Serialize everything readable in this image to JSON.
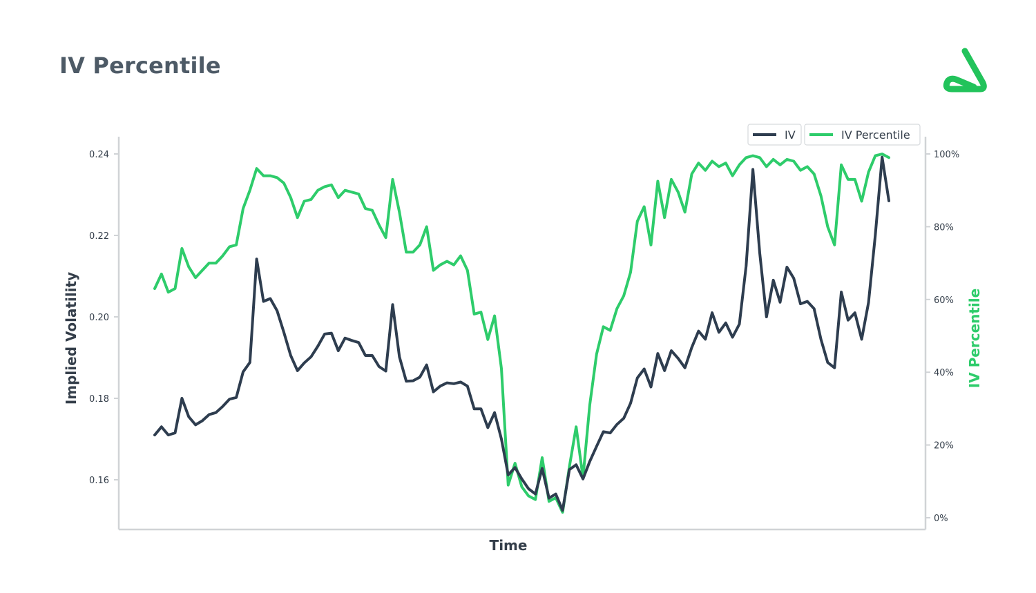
{
  "header": {
    "title": "IV Percentile"
  },
  "logo": {
    "icon": "brand-logo-icon",
    "color": "#22c35b"
  },
  "colors": {
    "iv": "#2e3d4f",
    "iv_percentile": "#2ecc6b",
    "axis": "#d0d3d6"
  },
  "chart_data": {
    "type": "line",
    "xlabel": "Time",
    "ylabel_left": "Implied Volatility",
    "ylabel_right": "IV Percentile",
    "ylim_left": [
      0.15,
      0.24
    ],
    "ylim_right": [
      0,
      100
    ],
    "yticks_left": [
      "0.16",
      "0.18",
      "0.20",
      "0.22",
      "0.24"
    ],
    "yticks_right": [
      "0%",
      "20%",
      "40%",
      "60%",
      "80%",
      "100%"
    ],
    "legend": {
      "placement": "top-right",
      "entries": [
        "IV",
        "IV Percentile"
      ]
    },
    "grid": false,
    "series": [
      {
        "name": "IV",
        "axis": "left",
        "values": [
          0.171,
          0.173,
          0.171,
          0.1715,
          0.18,
          0.1755,
          0.1735,
          0.1745,
          0.176,
          0.1765,
          0.178,
          0.1798,
          0.1802,
          0.1865,
          0.1888,
          0.2142,
          0.2038,
          0.2045,
          0.2015,
          0.1962,
          0.1905,
          0.1868,
          0.1887,
          0.1902,
          0.1928,
          0.1958,
          0.196,
          0.1917,
          0.1948,
          0.1942,
          0.1937,
          0.1905,
          0.1905,
          0.1878,
          0.1867,
          0.203,
          0.1902,
          0.1842,
          0.1843,
          0.1852,
          0.1882,
          0.1816,
          0.183,
          0.1838,
          0.1836,
          0.184,
          0.183,
          0.1774,
          0.1774,
          0.1728,
          0.1765,
          0.17,
          0.1612,
          0.163,
          0.1602,
          0.1578,
          0.1565,
          0.1628,
          0.1555,
          0.1565,
          0.1525,
          0.1625,
          0.1637,
          0.1602,
          0.1645,
          0.1682,
          0.1718,
          0.1715,
          0.1736,
          0.1751,
          0.1788,
          0.185,
          0.1872,
          0.1828,
          0.191,
          0.1868,
          0.1917,
          0.1898,
          0.1875,
          0.1925,
          0.1965,
          0.1945,
          0.201,
          0.1962,
          0.1985,
          0.195,
          0.1982,
          0.2125,
          0.2362,
          0.2157,
          0.2,
          0.209,
          0.2036,
          0.2122,
          0.2095,
          0.2032,
          0.2038,
          0.202,
          0.1945,
          0.1888,
          0.1875,
          0.2061,
          0.1992,
          0.201,
          0.1945,
          0.2035,
          0.22,
          0.2392,
          0.2285
        ]
      },
      {
        "name": "IV Percentile",
        "axis": "right",
        "values": [
          63,
          67,
          62,
          63,
          74,
          69,
          66,
          68,
          70,
          70,
          72,
          74.5,
          75,
          85,
          90,
          96,
          94,
          94,
          93.5,
          92,
          88,
          82.5,
          87,
          87.5,
          90,
          91,
          91.5,
          88,
          90,
          89.5,
          89,
          85,
          84.5,
          80.5,
          77,
          93,
          84,
          73,
          73,
          75,
          80,
          68,
          69.5,
          70.5,
          69.5,
          72,
          68,
          56,
          56.5,
          49,
          55.5,
          41,
          9,
          15,
          8.5,
          6,
          5,
          16.5,
          4.5,
          5.5,
          1.5,
          14,
          25,
          11,
          31,
          45,
          52.5,
          51.5,
          57.5,
          61,
          67.5,
          81.5,
          85.5,
          75,
          92.5,
          82.5,
          93,
          89.5,
          84,
          94.5,
          97.5,
          95.5,
          98,
          96.5,
          97.5,
          94,
          97,
          99,
          99.5,
          99,
          96.5,
          98.5,
          97,
          98.5,
          98,
          95.5,
          96.5,
          94.5,
          88.5,
          80,
          75,
          97,
          93,
          93,
          87,
          95,
          99.5,
          100,
          99
        ]
      }
    ]
  }
}
